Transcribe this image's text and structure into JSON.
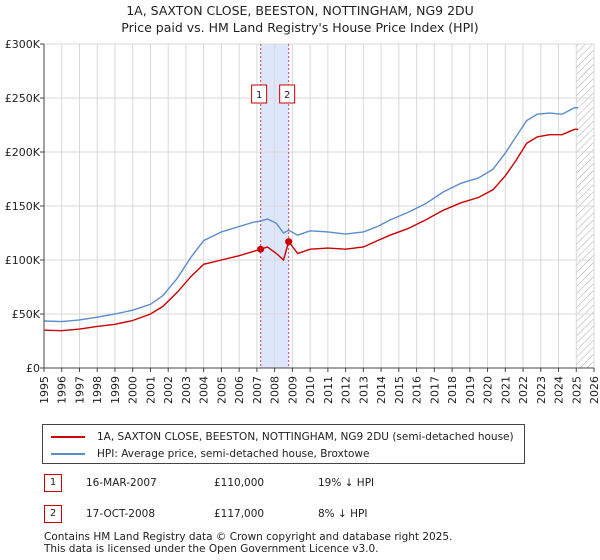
{
  "title_line1": "1A, SAXTON CLOSE, BEESTON, NOTTINGHAM, NG9 2DU",
  "title_line2": "Price paid vs. HM Land Registry's House Price Index (HPI)",
  "colors": {
    "property": "#cc0000",
    "hpi": "#5b8ccc",
    "band": "#dde6fb",
    "grid": "#d9d9d9",
    "hatch": "#aaaaaa"
  },
  "chart_data": {
    "type": "line",
    "xlim": [
      1995,
      2026
    ],
    "ylim": [
      0,
      300000
    ],
    "x_ticks": [
      "1995",
      "1996",
      "1997",
      "1998",
      "1999",
      "2000",
      "2001",
      "2002",
      "2003",
      "2004",
      "2005",
      "2006",
      "2007",
      "2008",
      "2009",
      "2010",
      "2011",
      "2012",
      "2013",
      "2014",
      "2015",
      "2016",
      "2017",
      "2018",
      "2019",
      "2020",
      "2021",
      "2022",
      "2023",
      "2024",
      "2025",
      "2026"
    ],
    "y_ticks": [
      {
        "value": 0,
        "label": "£0"
      },
      {
        "value": 50000,
        "label": "£50K"
      },
      {
        "value": 100000,
        "label": "£100K"
      },
      {
        "value": 150000,
        "label": "£150K"
      },
      {
        "value": 200000,
        "label": "£200K"
      },
      {
        "value": 250000,
        "label": "£250K"
      },
      {
        "value": 300000,
        "label": "£300K"
      }
    ],
    "grid": true,
    "shaded_band": {
      "from": 2007.21,
      "to": 2008.79
    },
    "future_hatch_from": 2025.0,
    "series": [
      {
        "name": "1A, SAXTON CLOSE, BEESTON, NOTTINGHAM, NG9 2DU (semi-detached house)",
        "color_key": "property",
        "points": [
          [
            1995.0,
            35000
          ],
          [
            1996.0,
            34500
          ],
          [
            1997.0,
            36000
          ],
          [
            1998.0,
            38500
          ],
          [
            1999.0,
            40500
          ],
          [
            2000.0,
            44000
          ],
          [
            2001.0,
            50000
          ],
          [
            2001.7,
            57000
          ],
          [
            2002.5,
            70000
          ],
          [
            2003.3,
            85000
          ],
          [
            2004.0,
            96000
          ],
          [
            2005.0,
            100000
          ],
          [
            2006.0,
            104000
          ],
          [
            2006.8,
            108000
          ],
          [
            2007.21,
            110000
          ],
          [
            2007.6,
            112000
          ],
          [
            2008.1,
            106000
          ],
          [
            2008.5,
            100000
          ],
          [
            2008.79,
            117000
          ],
          [
            2009.3,
            106000
          ],
          [
            2010.0,
            110000
          ],
          [
            2011.0,
            111000
          ],
          [
            2012.0,
            110000
          ],
          [
            2013.0,
            112000
          ],
          [
            2013.8,
            118000
          ],
          [
            2014.5,
            123000
          ],
          [
            2015.5,
            129000
          ],
          [
            2016.5,
            137000
          ],
          [
            2017.5,
            146000
          ],
          [
            2018.5,
            153000
          ],
          [
            2019.5,
            158000
          ],
          [
            2020.3,
            165000
          ],
          [
            2021.0,
            178000
          ],
          [
            2021.6,
            192000
          ],
          [
            2022.2,
            208000
          ],
          [
            2022.8,
            214000
          ],
          [
            2023.5,
            216000
          ],
          [
            2024.2,
            216000
          ],
          [
            2024.9,
            221000
          ],
          [
            2025.1,
            221000
          ]
        ]
      },
      {
        "name": "HPI: Average price, semi-detached house, Broxtowe",
        "color_key": "hpi",
        "points": [
          [
            1995.0,
            43500
          ],
          [
            1996.0,
            43000
          ],
          [
            1997.0,
            44500
          ],
          [
            1998.0,
            47000
          ],
          [
            1999.0,
            50000
          ],
          [
            2000.0,
            53500
          ],
          [
            2001.0,
            59000
          ],
          [
            2001.7,
            67000
          ],
          [
            2002.5,
            83000
          ],
          [
            2003.3,
            103000
          ],
          [
            2004.0,
            118000
          ],
          [
            2005.0,
            126000
          ],
          [
            2006.0,
            131000
          ],
          [
            2006.8,
            135000
          ],
          [
            2007.21,
            136000
          ],
          [
            2007.6,
            138000
          ],
          [
            2008.1,
            134000
          ],
          [
            2008.5,
            125000
          ],
          [
            2008.79,
            127500
          ],
          [
            2009.3,
            123000
          ],
          [
            2010.0,
            127000
          ],
          [
            2011.0,
            126000
          ],
          [
            2012.0,
            124000
          ],
          [
            2013.0,
            126000
          ],
          [
            2013.8,
            131000
          ],
          [
            2014.5,
            137000
          ],
          [
            2015.5,
            144000
          ],
          [
            2016.5,
            152000
          ],
          [
            2017.5,
            163000
          ],
          [
            2018.5,
            171000
          ],
          [
            2019.5,
            176000
          ],
          [
            2020.3,
            184000
          ],
          [
            2021.0,
            199000
          ],
          [
            2021.6,
            214000
          ],
          [
            2022.2,
            229000
          ],
          [
            2022.8,
            235000
          ],
          [
            2023.5,
            236000
          ],
          [
            2024.2,
            235000
          ],
          [
            2024.9,
            241000
          ],
          [
            2025.1,
            241000
          ]
        ]
      }
    ],
    "sales": [
      {
        "id": "1",
        "x": 2007.21,
        "y": 110000
      },
      {
        "id": "2",
        "x": 2008.79,
        "y": 117000
      }
    ]
  },
  "legend": {
    "property_label": "1A, SAXTON CLOSE, BEESTON, NOTTINGHAM, NG9 2DU (semi-detached house)",
    "hpi_label": "HPI: Average price, semi-detached house, Broxtowe"
  },
  "transactions": [
    {
      "num": "1",
      "date": "16-MAR-2007",
      "price": "£110,000",
      "hpi": "19% ↓ HPI"
    },
    {
      "num": "2",
      "date": "17-OCT-2008",
      "price": "£117,000",
      "hpi": "8% ↓ HPI"
    }
  ],
  "footer_line1": "Contains HM Land Registry data © Crown copyright and database right 2025.",
  "footer_line2": "This data is licensed under the Open Government Licence v3.0."
}
